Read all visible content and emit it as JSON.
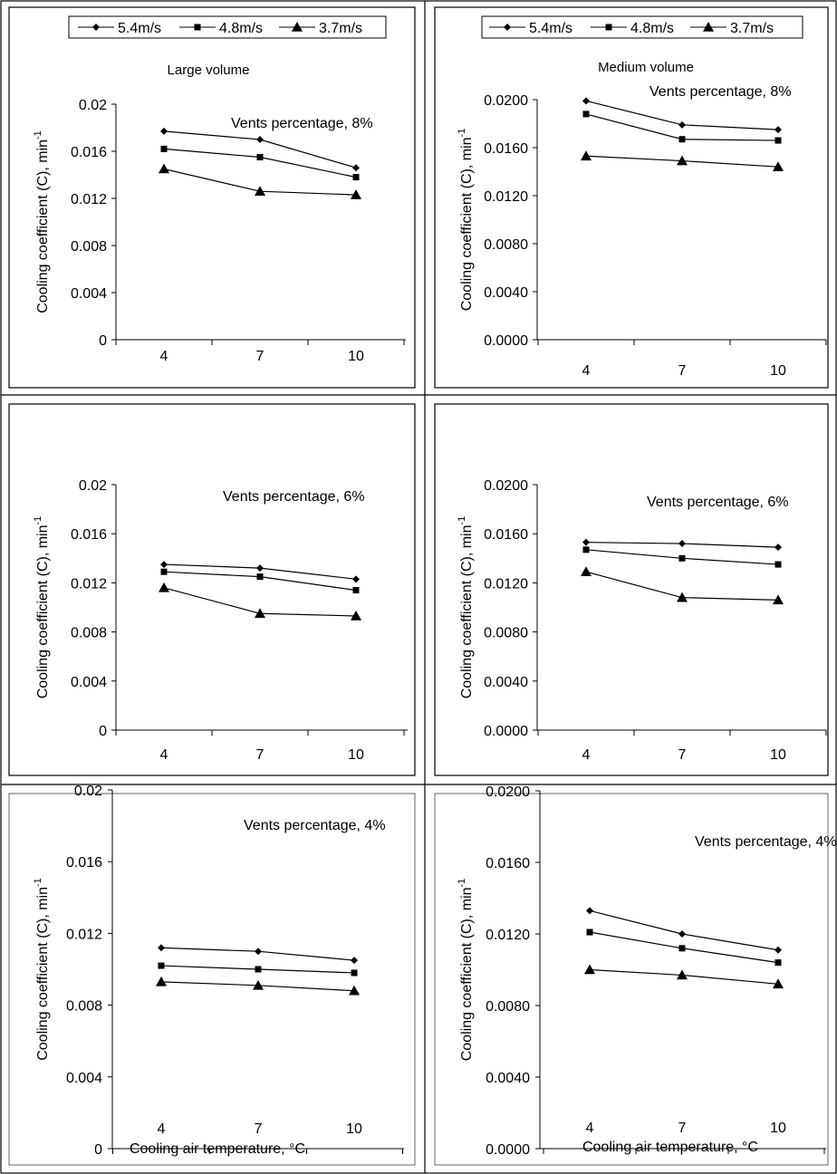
{
  "legend": {
    "entries": [
      {
        "label": "5.4m/s",
        "marker": "diamond"
      },
      {
        "label": "4.8m/s",
        "marker": "square"
      },
      {
        "label": "3.7m/s",
        "marker": "triangle"
      }
    ]
  },
  "shared": {
    "ylabel": "Cooling coefficient (C), min",
    "ylabel_superscript": "-1",
    "xlabel": "Cooling air temperature, ",
    "xlabel_unit": "°C"
  },
  "chart_data": [
    {
      "type": "line",
      "volume_label": "Large volume",
      "annotation": "Vents percentage, 8%",
      "categories": [
        "4",
        "7",
        "10"
      ],
      "ylim": [
        0,
        0.02
      ],
      "yticks": [
        "0",
        "0.004",
        "0.008",
        "0.012",
        "0.016",
        "0.02"
      ],
      "series": [
        {
          "name": "5.4m/s",
          "marker": "diamond",
          "values": [
            0.0177,
            0.017,
            0.0146
          ]
        },
        {
          "name": "4.8m/s",
          "marker": "square",
          "values": [
            0.0162,
            0.0155,
            0.0138
          ]
        },
        {
          "name": "3.7m/s",
          "marker": "triangle",
          "values": [
            0.0145,
            0.0126,
            0.0123
          ]
        }
      ]
    },
    {
      "type": "line",
      "volume_label": "Medium volume",
      "annotation": "Vents percentage, 8%",
      "categories": [
        "4",
        "7",
        "10"
      ],
      "ylim": [
        0,
        0.02
      ],
      "yticks": [
        "0.0000",
        "0.0040",
        "0.0080",
        "0.0120",
        "0.0160",
        "0.0200"
      ],
      "series": [
        {
          "name": "5.4m/s",
          "marker": "diamond",
          "values": [
            0.0199,
            0.0179,
            0.0175
          ]
        },
        {
          "name": "4.8m/s",
          "marker": "square",
          "values": [
            0.0188,
            0.0167,
            0.0166
          ]
        },
        {
          "name": "3.7m/s",
          "marker": "triangle",
          "values": [
            0.0153,
            0.0149,
            0.0144
          ]
        }
      ]
    },
    {
      "type": "line",
      "annotation": "Vents percentage, 6%",
      "categories": [
        "4",
        "7",
        "10"
      ],
      "ylim": [
        0,
        0.02
      ],
      "yticks": [
        "0",
        "0.004",
        "0.008",
        "0.012",
        "0.016",
        "0.02"
      ],
      "series": [
        {
          "name": "5.4m/s",
          "marker": "diamond",
          "values": [
            0.0135,
            0.0132,
            0.0123
          ]
        },
        {
          "name": "4.8m/s",
          "marker": "square",
          "values": [
            0.0129,
            0.0125,
            0.0114
          ]
        },
        {
          "name": "3.7m/s",
          "marker": "triangle",
          "values": [
            0.0116,
            0.0095,
            0.0093
          ]
        }
      ]
    },
    {
      "type": "line",
      "annotation": "Vents percentage, 6%",
      "categories": [
        "4",
        "7",
        "10"
      ],
      "ylim": [
        0,
        0.02
      ],
      "yticks": [
        "0.0000",
        "0.0040",
        "0.0080",
        "0.0120",
        "0.0160",
        "0.0200"
      ],
      "series": [
        {
          "name": "5.4m/s",
          "marker": "diamond",
          "values": [
            0.0153,
            0.0152,
            0.0149
          ]
        },
        {
          "name": "4.8m/s",
          "marker": "square",
          "values": [
            0.0147,
            0.014,
            0.0135
          ]
        },
        {
          "name": "3.7m/s",
          "marker": "triangle",
          "values": [
            0.0129,
            0.0108,
            0.0106
          ]
        }
      ]
    },
    {
      "type": "line",
      "annotation": "Vents percentage, 4%",
      "categories": [
        "4",
        "7",
        "10"
      ],
      "ylim": [
        0,
        0.02
      ],
      "yticks": [
        "0",
        "0.004",
        "0.008",
        "0.012",
        "0.016",
        "0.02"
      ],
      "xlabel": "Cooling air temperature, °C",
      "series": [
        {
          "name": "5.4m/s",
          "marker": "diamond",
          "values": [
            0.0112,
            0.011,
            0.0105
          ]
        },
        {
          "name": "4.8m/s",
          "marker": "square",
          "values": [
            0.0102,
            0.01,
            0.0098
          ]
        },
        {
          "name": "3.7m/s",
          "marker": "triangle",
          "values": [
            0.0093,
            0.0091,
            0.0088
          ]
        }
      ]
    },
    {
      "type": "line",
      "annotation": "Vents percentage, 4%",
      "categories": [
        "4",
        "7",
        "10"
      ],
      "ylim": [
        0,
        0.02
      ],
      "yticks": [
        "0.0000",
        "0.0040",
        "0.0080",
        "0.0120",
        "0.0160",
        "0.0200"
      ],
      "xlabel": "Cooling air temperature, °C",
      "series": [
        {
          "name": "5.4m/s",
          "marker": "diamond",
          "values": [
            0.0133,
            0.012,
            0.0111
          ]
        },
        {
          "name": "4.8m/s",
          "marker": "square",
          "values": [
            0.0121,
            0.0112,
            0.0104
          ]
        },
        {
          "name": "3.7m/s",
          "marker": "triangle",
          "values": [
            0.01,
            0.0097,
            0.0092
          ]
        }
      ]
    }
  ]
}
